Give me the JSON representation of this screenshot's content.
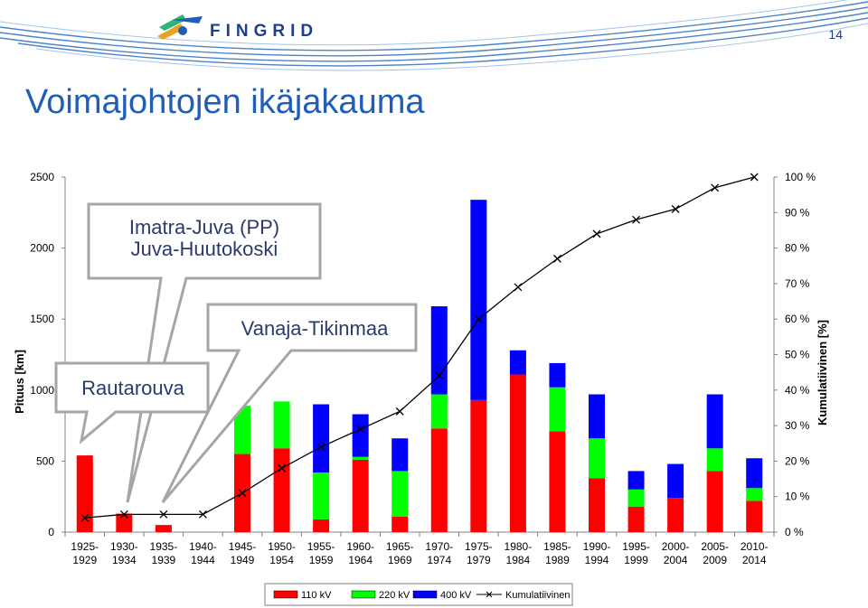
{
  "header": {
    "logo_text": "FINGRID",
    "page_number": "14",
    "logo_colors": [
      "#1f5fb8",
      "#e8a323",
      "#2bb673"
    ]
  },
  "title": "Voimajohtojen ikäjakauma",
  "chart_data": {
    "type": "bar",
    "stacked": true,
    "categories": [
      "1925-\n1929",
      "1930-\n1934",
      "1935-\n1939",
      "1940-\n1944",
      "1945-\n1949",
      "1950-\n1954",
      "1955-\n1959",
      "1960-\n1964",
      "1965-\n1969",
      "1970-\n1974",
      "1975-\n1979",
      "1980-\n1984",
      "1985-\n1989",
      "1990-\n1994",
      "1995-\n1999",
      "2000-\n2004",
      "2005-\n2009",
      "2010-\n2014"
    ],
    "series": [
      {
        "name": "110 kV",
        "color": "#ff0000",
        "values": [
          540,
          130,
          50,
          0,
          550,
          590,
          90,
          510,
          110,
          730,
          930,
          1110,
          710,
          380,
          180,
          240,
          430,
          220
        ]
      },
      {
        "name": "220 kV",
        "color": "#00ff00",
        "values": [
          0,
          0,
          0,
          0,
          340,
          330,
          330,
          20,
          320,
          240,
          0,
          0,
          310,
          280,
          120,
          0,
          160,
          90
        ]
      },
      {
        "name": "400 kV",
        "color": "#0000ff",
        "values": [
          0,
          0,
          0,
          0,
          0,
          0,
          480,
          300,
          230,
          620,
          1410,
          170,
          170,
          310,
          130,
          240,
          380,
          210
        ]
      }
    ],
    "line_series": {
      "name": "Kumulatiivinen",
      "color": "#000000",
      "values": [
        4,
        5,
        5,
        5,
        11,
        18,
        24,
        29,
        34,
        44,
        60,
        69,
        77,
        84,
        88,
        91,
        97,
        100
      ]
    },
    "ylabel": "Pituus [km]",
    "y2label": "Kumulatiivinen [%]",
    "ylim": [
      0,
      2500
    ],
    "yticks": [
      "0",
      "500",
      "1000",
      "1500",
      "2000",
      "2500"
    ],
    "y2lim": [
      0,
      100
    ],
    "y2ticks": [
      "0 %",
      "10 %",
      "20 %",
      "30 %",
      "40 %",
      "50 %",
      "60 %",
      "70 %",
      "80 %",
      "90 %",
      "100 %"
    ],
    "grid": false,
    "legend_position": "bottom",
    "legend": [
      "110 kV",
      "220 kV",
      "400 kV",
      "Kumulatiivinen"
    ]
  },
  "callouts": [
    {
      "text": "Imatra-Juva (PP)\nJuva-Huutokoski"
    },
    {
      "text": "Vanaja-Tikinmaa"
    },
    {
      "text": "Rautarouva"
    }
  ]
}
